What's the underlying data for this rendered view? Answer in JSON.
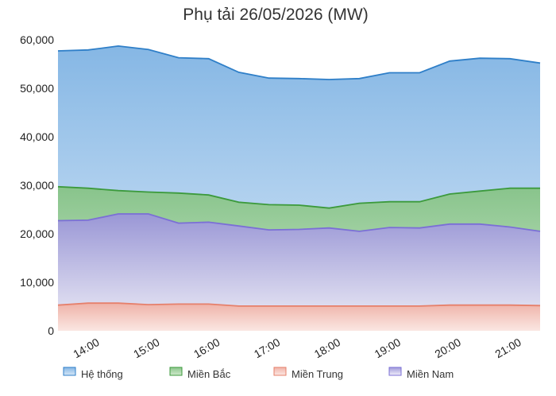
{
  "chart_data": {
    "type": "area",
    "title": "Phụ tải 26/05/2026 (MW)",
    "xlabel": "",
    "ylabel": "",
    "ylim": [
      0,
      60000
    ],
    "y_ticks": [
      "0",
      "10,000",
      "20,000",
      "30,000",
      "40,000",
      "50,000",
      "60,000"
    ],
    "x": [
      "13:30",
      "14:00",
      "14:30",
      "15:00",
      "15:30",
      "16:00",
      "16:30",
      "17:00",
      "17:30",
      "18:00",
      "18:30",
      "19:00",
      "19:30",
      "20:00",
      "20:30",
      "21:00",
      "21:30"
    ],
    "x_tick_labels": [
      "14:00",
      "15:00",
      "16:00",
      "17:00",
      "18:00",
      "19:00",
      "20:00",
      "21:00"
    ],
    "grid": false,
    "legend_position": "bottom",
    "series": [
      {
        "name": "Hệ thống",
        "color": "#2f7fc8",
        "values": [
          57700,
          57900,
          58700,
          58000,
          56300,
          56100,
          53300,
          52100,
          52000,
          51800,
          52000,
          53200,
          53200,
          55600,
          56200,
          56100,
          55200
        ]
      },
      {
        "name": "Miền Bắc",
        "color": "#3c9a3c",
        "values": [
          29700,
          29400,
          28900,
          28600,
          28400,
          28000,
          26500,
          26000,
          25900,
          25300,
          26300,
          26600,
          26600,
          28200,
          28800,
          29400,
          29400
        ]
      },
      {
        "name": "Miền Trung",
        "color": "#e6806b",
        "values": [
          5300,
          5700,
          5700,
          5400,
          5500,
          5500,
          5100,
          5100,
          5100,
          5100,
          5100,
          5100,
          5100,
          5300,
          5300,
          5300,
          5200
        ]
      },
      {
        "name": "Miền Nam",
        "color": "#7b6fd6",
        "values": [
          22700,
          22800,
          24100,
          24100,
          22200,
          22400,
          21600,
          20800,
          20900,
          21200,
          20500,
          21300,
          21200,
          22000,
          22000,
          21400,
          20500
        ]
      }
    ]
  }
}
